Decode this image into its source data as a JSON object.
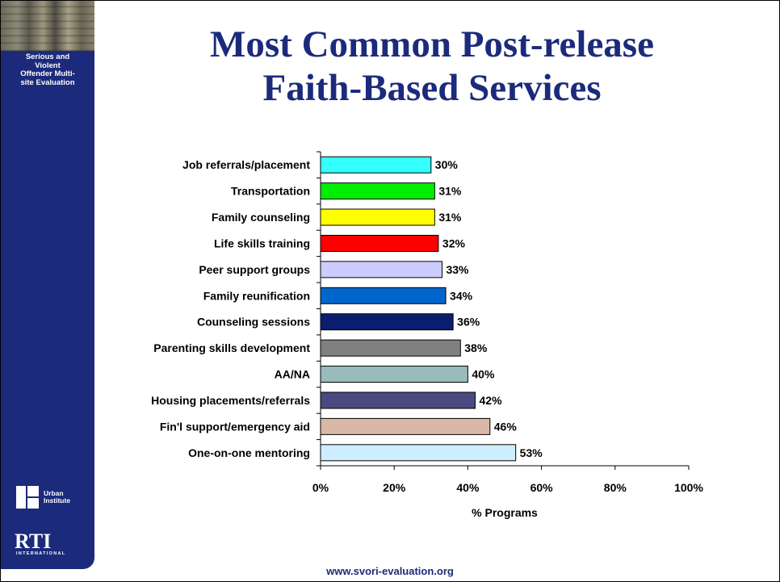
{
  "sidebar": {
    "title": "Serious and\nViolent\nOffender Multi-\nsite Evaluation",
    "urban_logo_text": "Urban\nInstitute",
    "rti_logo_text": "RTI",
    "rti_logo_subtext": "INTERNATIONAL"
  },
  "title": "Most Common Post-release\nFaith-Based Services",
  "footer_url": "www.svori-evaluation.org",
  "colors": {
    "sidebar": "#1c2a7c",
    "title": "#1c2a7c"
  },
  "chart_data": {
    "type": "bar",
    "orientation": "horizontal",
    "categories": [
      "Job referrals/placement",
      "Transportation",
      "Family counseling",
      "Life skills training",
      "Peer support groups",
      "Family reunification",
      "Counseling sessions",
      "Parenting skills development",
      "AA/NA",
      "Housing placements/referrals",
      "Fin'l support/emergency aid",
      "One-on-one mentoring"
    ],
    "values": [
      30,
      31,
      31,
      32,
      33,
      34,
      36,
      38,
      40,
      42,
      46,
      53
    ],
    "data_labels": [
      "30%",
      "31%",
      "31%",
      "32%",
      "33%",
      "34%",
      "36%",
      "38%",
      "40%",
      "42%",
      "46%",
      "53%"
    ],
    "bar_colors": [
      "#33ffff",
      "#00ee00",
      "#ffff00",
      "#ff0000",
      "#ccccff",
      "#0066cc",
      "#0a1e6e",
      "#808080",
      "#99bbbb",
      "#4a4a80",
      "#d9b8a8",
      "#cceeff"
    ],
    "xlabel": "% Programs",
    "ylabel": "",
    "xlim": [
      0,
      100
    ],
    "xticks": [
      0,
      20,
      40,
      60,
      80,
      100
    ],
    "xtick_labels": [
      "0%",
      "20%",
      "40%",
      "60%",
      "80%",
      "100%"
    ],
    "grid": false,
    "legend": "none"
  }
}
